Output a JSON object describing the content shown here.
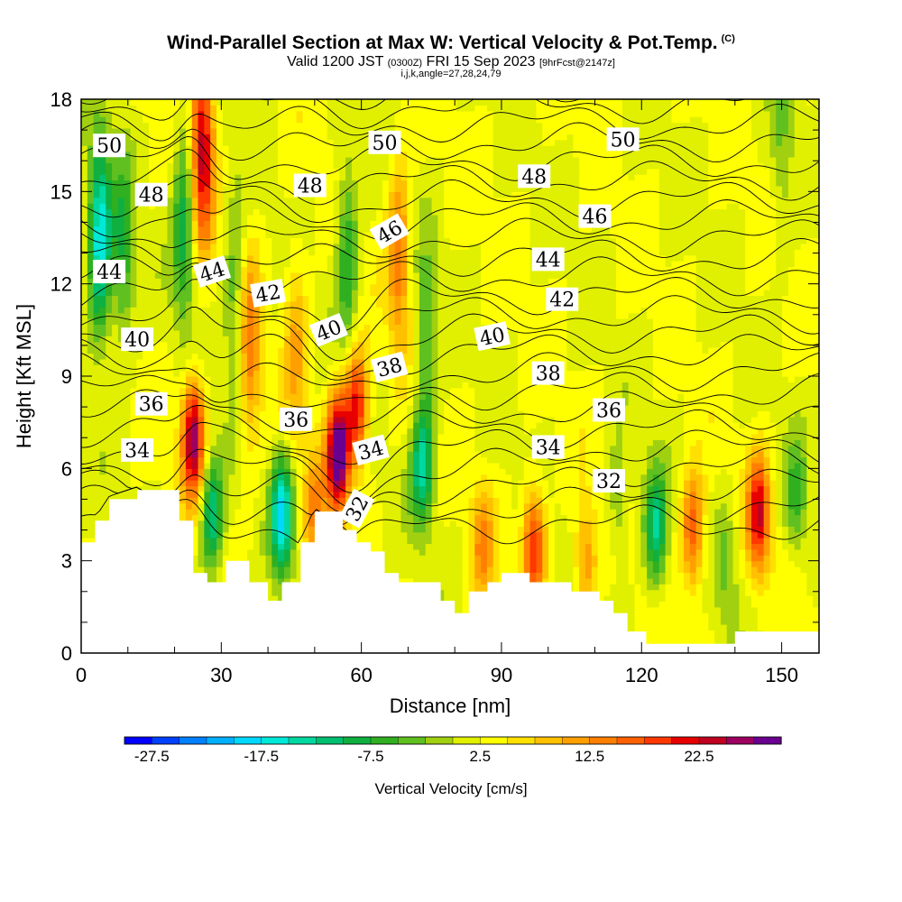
{
  "header": {
    "title": "Wind-Parallel Section at Max W: Vertical Velocity & Pot.Temp.",
    "title_tag": "(C)",
    "valid_prefix": "Valid 1200 JST",
    "valid_utc": "(0300Z)",
    "valid_date": "FRI 15 Sep 2023",
    "forecast": "[9hrFcst@2147z]",
    "params": "i,j,k,angle=27,28,24,79"
  },
  "chart_data": {
    "type": "heatmap",
    "xlabel": "Distance [nm]",
    "ylabel": "Height [Kft MSL]",
    "xlim": [
      0,
      158
    ],
    "ylim": [
      0,
      18
    ],
    "x_ticks": [
      0,
      30,
      60,
      90,
      120,
      150
    ],
    "y_ticks": [
      0,
      3,
      6,
      9,
      12,
      15,
      18
    ],
    "colorbar": {
      "label": "Vertical Velocity [cm/s]",
      "tick_labels": [
        "-27.5",
        "-17.5",
        "-7.5",
        "2.5",
        "12.5",
        "22.5"
      ],
      "levels": [
        -30,
        -27.5,
        -25,
        -22.5,
        -20,
        -17.5,
        -15,
        -12.5,
        -10,
        -7.5,
        -5,
        -2.5,
        0,
        2.5,
        5,
        7.5,
        10,
        12.5,
        15,
        17.5,
        20,
        22.5,
        25,
        27.5,
        30
      ],
      "colors": [
        "#0000ff",
        "#0040ff",
        "#0080ff",
        "#00b0ff",
        "#00d8ff",
        "#00e8d8",
        "#00d8a0",
        "#00c070",
        "#10b040",
        "#30b020",
        "#60c020",
        "#a0d010",
        "#e0f000",
        "#ffff00",
        "#ffe000",
        "#ffc000",
        "#ffa000",
        "#ff8000",
        "#ff6000",
        "#ff3800",
        "#e80000",
        "#c00020",
        "#9e0060",
        "#6a0090"
      ]
    },
    "vertical_velocity_cores_cm_s": [
      {
        "x": 4,
        "height_kft": 13.5,
        "w": -20
      },
      {
        "x": 9,
        "height_kft": 13,
        "w": -10
      },
      {
        "x": 22,
        "height_kft": 14,
        "w": -12
      },
      {
        "x": 24,
        "height_kft": 7,
        "w": 25
      },
      {
        "x": 26,
        "height_kft": 16.5,
        "w": 22
      },
      {
        "x": 28,
        "height_kft": 4.5,
        "w": -15
      },
      {
        "x": 33,
        "height_kft": 11.5,
        "w": -8
      },
      {
        "x": 36,
        "height_kft": 10,
        "w": 12
      },
      {
        "x": 43,
        "height_kft": 4.5,
        "w": -20
      },
      {
        "x": 46,
        "height_kft": 10,
        "w": 8
      },
      {
        "x": 50,
        "height_kft": 4.5,
        "w": 10
      },
      {
        "x": 55,
        "height_kft": 6.5,
        "w": 30
      },
      {
        "x": 59,
        "height_kft": 8,
        "w": 20
      },
      {
        "x": 57,
        "height_kft": 13,
        "w": -10
      },
      {
        "x": 68,
        "height_kft": 13,
        "w": 12
      },
      {
        "x": 73,
        "height_kft": 6,
        "w": -15
      },
      {
        "x": 74,
        "height_kft": 10,
        "w": -8
      },
      {
        "x": 86,
        "height_kft": 3.5,
        "w": 10
      },
      {
        "x": 97,
        "height_kft": 3.5,
        "w": 18
      },
      {
        "x": 108,
        "height_kft": 3,
        "w": 10
      },
      {
        "x": 115,
        "height_kft": 5,
        "w": -6
      },
      {
        "x": 123,
        "height_kft": 4,
        "w": -15
      },
      {
        "x": 131,
        "height_kft": 4,
        "w": 15
      },
      {
        "x": 138,
        "height_kft": 3,
        "w": -6
      },
      {
        "x": 145,
        "height_kft": 4.5,
        "w": 20
      },
      {
        "x": 153,
        "height_kft": 5,
        "w": -8
      },
      {
        "x": 150,
        "height_kft": 16.5,
        "w": -5
      }
    ],
    "terrain_kft": [
      [
        0,
        3.6
      ],
      [
        3,
        4.3
      ],
      [
        6,
        5.0
      ],
      [
        12,
        5.3
      ],
      [
        21,
        4.3
      ],
      [
        24,
        2.6
      ],
      [
        27,
        2.3
      ],
      [
        31,
        3.0
      ],
      [
        36,
        2.3
      ],
      [
        40,
        1.7
      ],
      [
        43,
        2.3
      ],
      [
        47,
        3.6
      ],
      [
        50,
        4.6
      ],
      [
        56,
        4.0
      ],
      [
        59,
        3.6
      ],
      [
        62,
        3.3
      ],
      [
        65,
        2.6
      ],
      [
        68,
        2.3
      ],
      [
        74,
        2.3
      ],
      [
        77,
        1.7
      ],
      [
        80,
        1.3
      ],
      [
        83,
        2.0
      ],
      [
        87,
        2.3
      ],
      [
        90,
        2.6
      ],
      [
        96,
        2.3
      ],
      [
        102,
        2.3
      ],
      [
        105,
        2.0
      ],
      [
        111,
        1.7
      ],
      [
        114,
        1.3
      ],
      [
        117,
        0.7
      ],
      [
        121,
        0.3
      ],
      [
        140,
        0.7
      ],
      [
        158,
        0.7
      ]
    ],
    "potential_temperature_labels": [
      {
        "text": "50",
        "x": 6,
        "y": 16.5,
        "angle": 0
      },
      {
        "text": "48",
        "x": 15,
        "y": 14.9,
        "angle": 0
      },
      {
        "text": "44",
        "x": 6,
        "y": 12.4,
        "angle": 0
      },
      {
        "text": "44",
        "x": 28,
        "y": 12.4,
        "angle": -18
      },
      {
        "text": "42",
        "x": 40,
        "y": 11.7,
        "angle": -10
      },
      {
        "text": "40",
        "x": 12,
        "y": 10.2,
        "angle": 0
      },
      {
        "text": "36",
        "x": 15,
        "y": 8.1,
        "angle": 0
      },
      {
        "text": "34",
        "x": 12,
        "y": 6.6,
        "angle": 0
      },
      {
        "text": "48",
        "x": 49,
        "y": 15.2,
        "angle": 0
      },
      {
        "text": "46",
        "x": 66,
        "y": 13.7,
        "angle": -30
      },
      {
        "text": "50",
        "x": 65,
        "y": 16.6,
        "angle": 0
      },
      {
        "text": "40",
        "x": 53,
        "y": 10.5,
        "angle": -22
      },
      {
        "text": "38",
        "x": 66,
        "y": 9.3,
        "angle": -15
      },
      {
        "text": "36",
        "x": 46,
        "y": 7.6,
        "angle": 0
      },
      {
        "text": "34",
        "x": 62,
        "y": 6.6,
        "angle": -15
      },
      {
        "text": "32",
        "x": 59,
        "y": 4.7,
        "angle": -62
      },
      {
        "text": "50",
        "x": 116,
        "y": 16.7,
        "angle": 0
      },
      {
        "text": "48",
        "x": 97,
        "y": 15.5,
        "angle": 0
      },
      {
        "text": "46",
        "x": 110,
        "y": 14.2,
        "angle": 0
      },
      {
        "text": "44",
        "x": 100,
        "y": 12.8,
        "angle": 0
      },
      {
        "text": "42",
        "x": 103,
        "y": 11.5,
        "angle": 0
      },
      {
        "text": "40",
        "x": 88,
        "y": 10.3,
        "angle": -12
      },
      {
        "text": "38",
        "x": 100,
        "y": 9.1,
        "angle": 0
      },
      {
        "text": "36",
        "x": 113,
        "y": 7.9,
        "angle": 0
      },
      {
        "text": "34",
        "x": 100,
        "y": 6.7,
        "angle": 0
      },
      {
        "text": "32",
        "x": 113,
        "y": 5.6,
        "angle": 0
      }
    ]
  }
}
